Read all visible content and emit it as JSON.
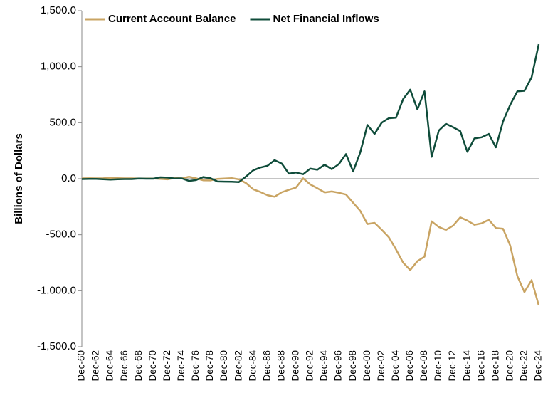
{
  "chart_data": {
    "type": "line",
    "ylabel": "Billions of Dollars",
    "categories": [
      "Dec-60",
      null,
      "Dec-62",
      null,
      "Dec-64",
      null,
      "Dec-66",
      null,
      "Dec-68",
      null,
      "Dec-70",
      null,
      "Dec-72",
      null,
      "Dec-74",
      null,
      "Dec-76",
      null,
      "Dec-78",
      null,
      "Dec-80",
      null,
      "Dec-82",
      null,
      "Dec-84",
      null,
      "Dec-86",
      null,
      "Dec-88",
      null,
      "Dec-90",
      null,
      "Dec-92",
      null,
      "Dec-94",
      null,
      "Dec-96",
      null,
      "Dec-98",
      null,
      "Dec-00",
      null,
      "Dec-02",
      null,
      "Dec-04",
      null,
      "Dec-06",
      null,
      "Dec-08",
      null,
      "Dec-10",
      null,
      "Dec-12",
      null,
      "Dec-14",
      null,
      "Dec-16",
      null,
      "Dec-18",
      null,
      "Dec-20",
      null,
      "Dec-22",
      null,
      "Dec-24"
    ],
    "series": [
      {
        "name": "Current Account Balance",
        "color": "#c9a463",
        "values": [
          3,
          4,
          3,
          4,
          7,
          5,
          3,
          3,
          1,
          1,
          2,
          -1,
          -6,
          7,
          2,
          18,
          4,
          -14,
          -15,
          -1,
          2,
          5,
          -6,
          -39,
          -94,
          -118,
          -147,
          -161,
          -121,
          -99,
          -79,
          3,
          -51,
          -85,
          -122,
          -114,
          -125,
          -141,
          -215,
          -287,
          -404,
          -394,
          -455,
          -522,
          -631,
          -749,
          -816,
          -736,
          -696,
          -381,
          -431,
          -457,
          -419,
          -345,
          -374,
          -411,
          -398,
          -366,
          -440,
          -446,
          -597,
          -868,
          -1012,
          -906,
          -1130
        ]
      },
      {
        "name": "Net Financial Inflows",
        "color": "#0f4c3a",
        "values": [
          -3,
          -2,
          -2,
          -5,
          -8,
          -5,
          -3,
          -3,
          1,
          0,
          0,
          13,
          10,
          2,
          3,
          -20,
          -12,
          15,
          5,
          -25,
          -26,
          -27,
          -30,
          20,
          75,
          100,
          115,
          165,
          135,
          45,
          55,
          40,
          90,
          80,
          125,
          85,
          130,
          220,
          65,
          235,
          480,
          400,
          500,
          540,
          545,
          710,
          795,
          620,
          780,
          195,
          430,
          490,
          460,
          425,
          240,
          360,
          370,
          400,
          280,
          510,
          660,
          780,
          785,
          905,
          1200
        ]
      }
    ],
    "ylim": [
      -1500,
      1500
    ],
    "yticks": [
      {
        "value": -1500,
        "label": "-1,500.0"
      },
      {
        "value": -1000,
        "label": "-1,000.0"
      },
      {
        "value": -500,
        "label": "-500.0"
      },
      {
        "value": 0,
        "label": "0.0"
      },
      {
        "value": 500,
        "label": "500.0"
      },
      {
        "value": 1000,
        "label": "1,000.0"
      },
      {
        "value": 1500,
        "label": "1,500.0"
      }
    ],
    "legend": "top"
  }
}
